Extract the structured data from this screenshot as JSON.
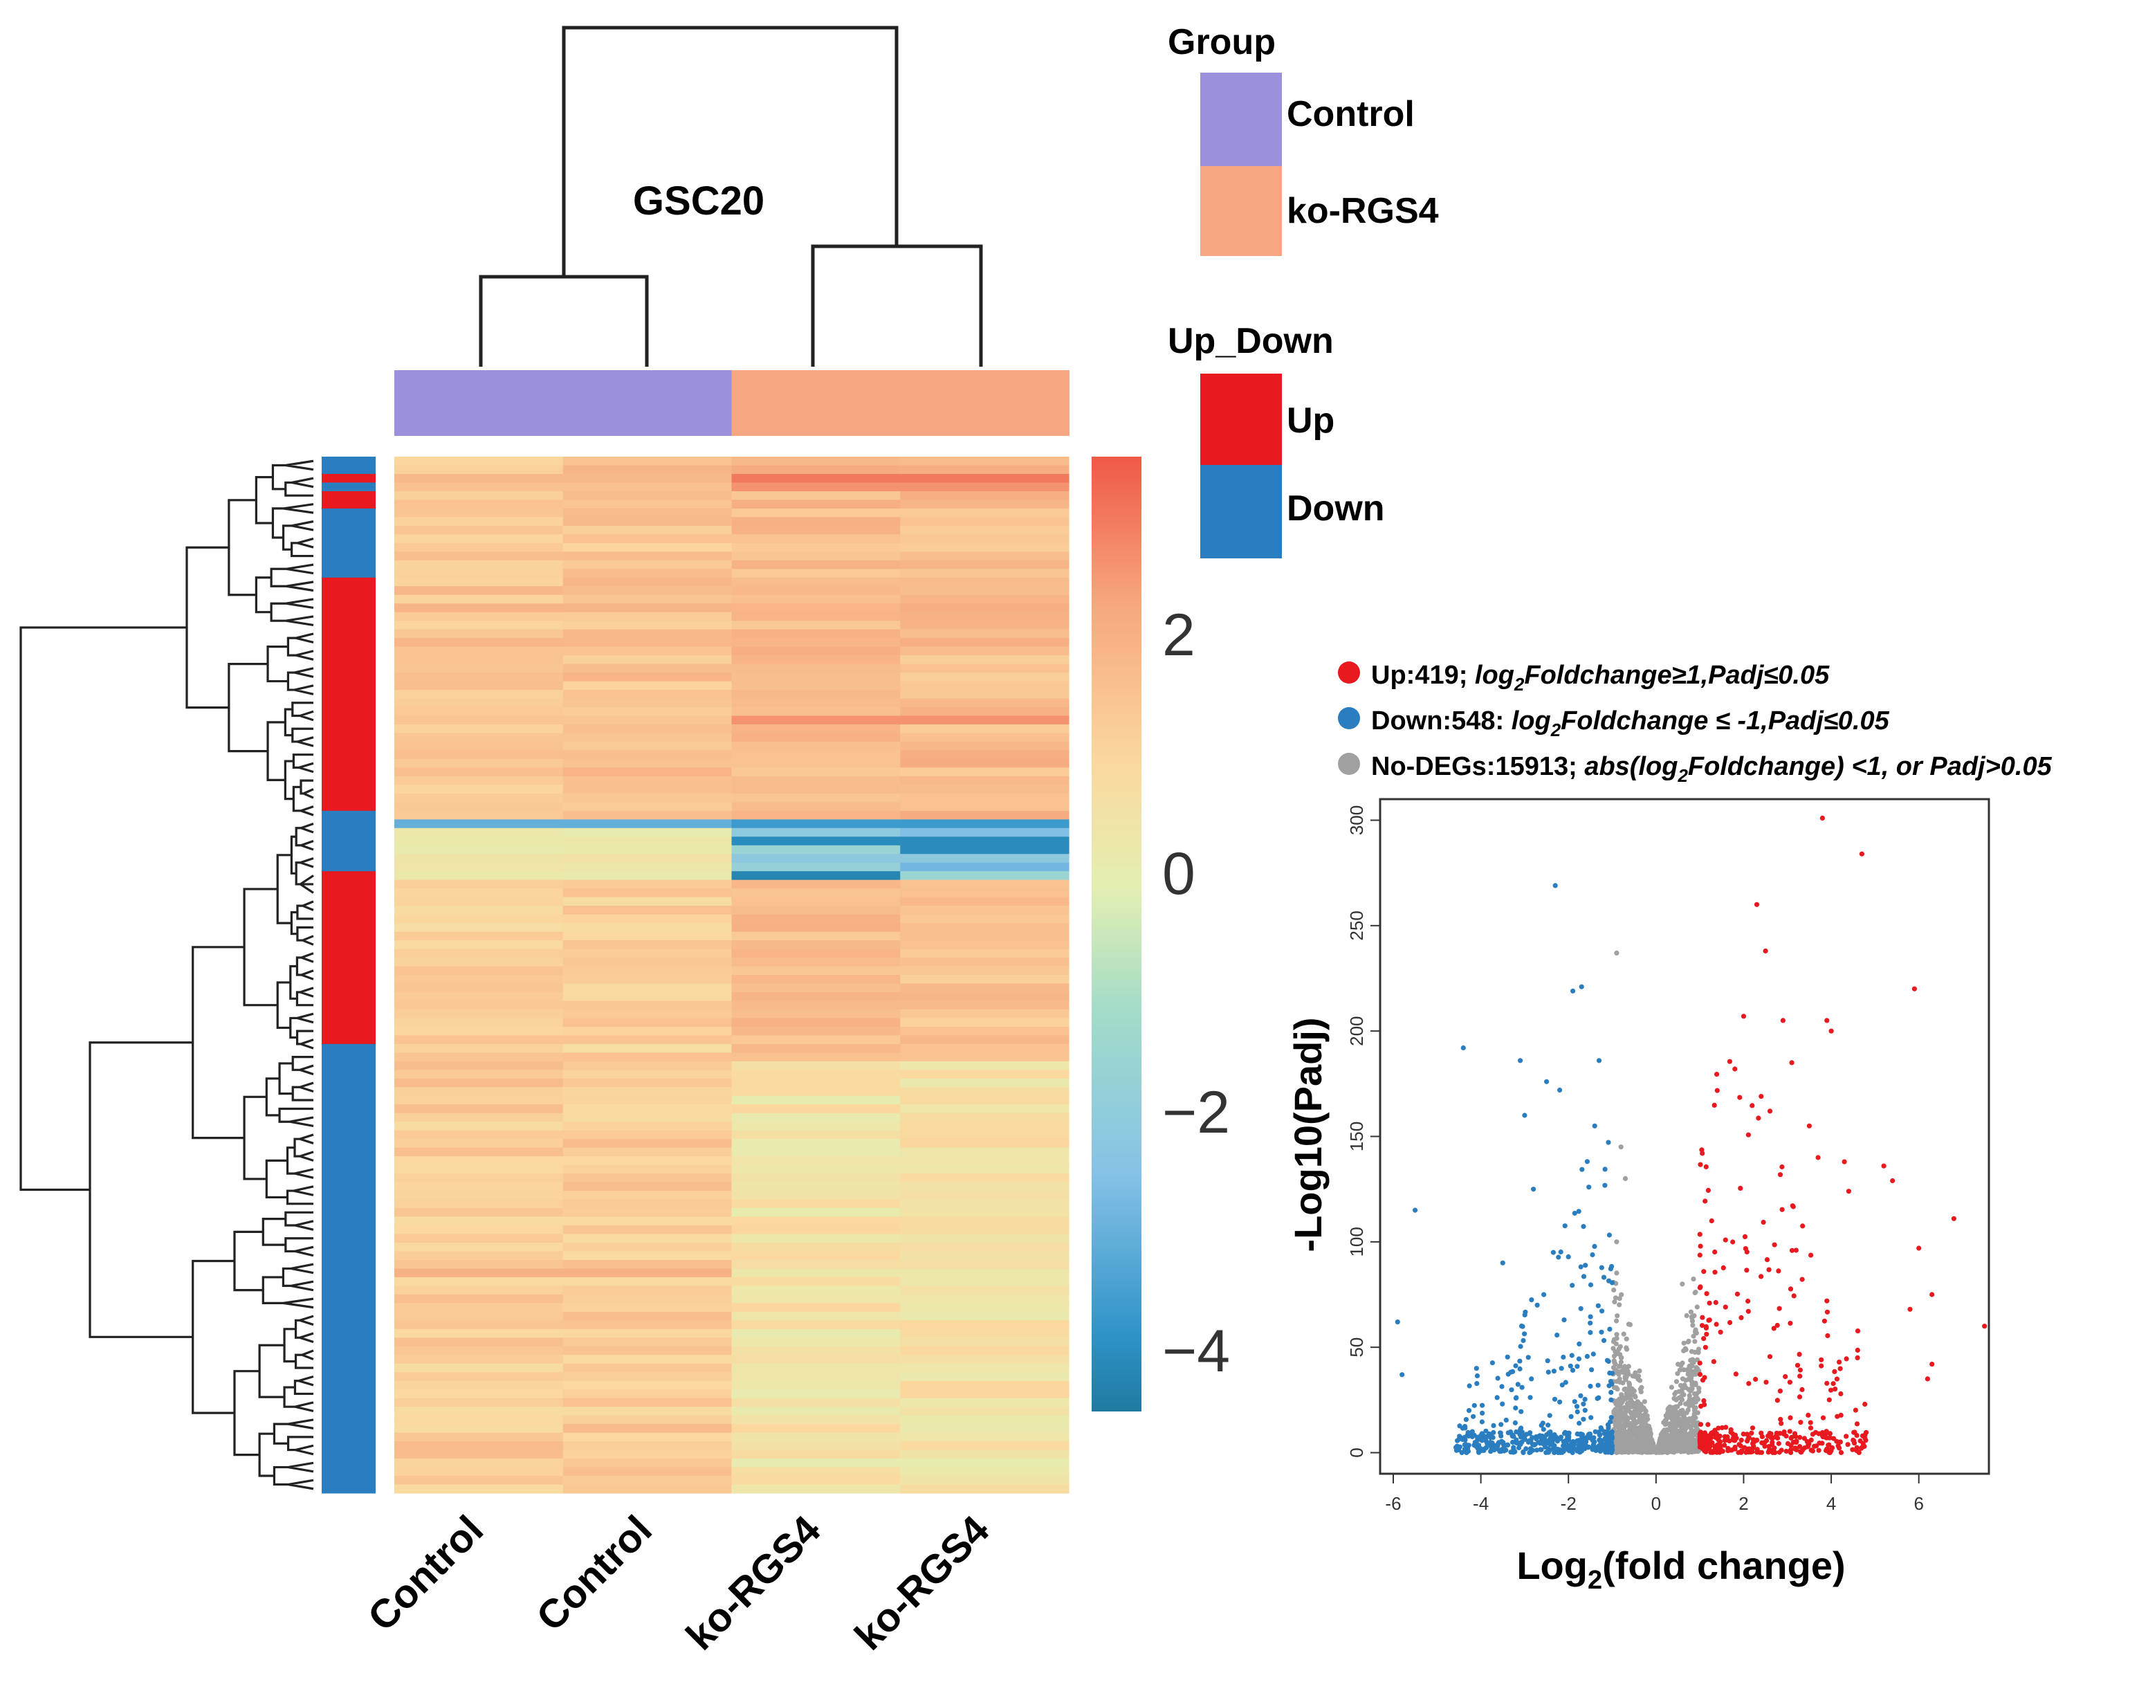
{
  "chart_data": [
    {
      "type": "heatmap",
      "title": "GSC20",
      "columns": [
        "Control",
        "Control",
        "ko-RGS4",
        "ko-RGS4"
      ],
      "column_groups": [
        "Control",
        "Control",
        "ko-RGS4",
        "ko-RGS4"
      ],
      "row_count": 120,
      "row_up_down": [
        {
          "label": "Down",
          "rows": 2
        },
        {
          "label": "Up",
          "rows": 1
        },
        {
          "label": "Down",
          "rows": 1
        },
        {
          "label": "Up",
          "rows": 2
        },
        {
          "label": "Down",
          "rows": 8
        },
        {
          "label": "Up",
          "rows": 27
        },
        {
          "label": "Down",
          "rows": 7
        },
        {
          "label": "Up",
          "rows": 20
        },
        {
          "label": "Down",
          "rows": 52
        }
      ],
      "value_profile": [
        {
          "rows": 42,
          "Control": 1.5,
          "ko-RGS4": 1.7
        },
        {
          "rows": 1,
          "Control": -3.0,
          "ko-RGS4": -3.5
        },
        {
          "rows": 6,
          "Control": 0.4,
          "ko-RGS4": -2.5
        },
        {
          "rows": 21,
          "Control": 1.2,
          "ko-RGS4": 1.6
        },
        {
          "rows": 50,
          "Control": 1.3,
          "ko-RGS4": 0.6
        }
      ],
      "colorbar": {
        "ticks": [
          2,
          0,
          -2,
          -4
        ],
        "range": [
          -4.5,
          3.5
        ],
        "colors": [
          "#1f7aa0",
          "#3aa0d6",
          "#8fc9ea",
          "#a8ddc6",
          "#e8f0b0",
          "#fbd59a",
          "#f5a37a",
          "#ee5a46"
        ]
      },
      "group_legend": {
        "title": "Group",
        "items": [
          {
            "label": "Control",
            "color": "#9b90dc"
          },
          {
            "label": "ko-RGS4",
            "color": "#f7a682"
          }
        ]
      },
      "updown_legend": {
        "title": "Up_Down",
        "items": [
          {
            "label": "Up",
            "color": "#e8191f"
          },
          {
            "label": "Down",
            "color": "#2a7ec0"
          }
        ]
      }
    },
    {
      "type": "scatter",
      "title": "",
      "xlabel": "Log2(fold change)",
      "ylabel": "-Log10(Padj)",
      "xlim": [
        -6.3,
        7.6
      ],
      "ylim": [
        -10,
        310
      ],
      "xticks": [
        -6,
        -4,
        -2,
        0,
        2,
        4,
        6
      ],
      "yticks": [
        0,
        50,
        100,
        150,
        200,
        250,
        300
      ],
      "legend": [
        {
          "name": "Up",
          "color": "#e8191f",
          "text": "Up:419; log2Foldchange≥1,Padj≤0.05"
        },
        {
          "name": "Down",
          "color": "#2a7ec0",
          "text": "Down:548: log2Foldchange ≤ -1,Padj≤0.05"
        },
        {
          "name": "No-DEGs",
          "color": "#a0a0a0",
          "text": "No-DEGs:15913; abs(log2Foldchange) <1, or Padj>0.05"
        }
      ],
      "series": [
        {
          "name": "Up",
          "color": "#e8191f",
          "count": 419,
          "highlighted_points": [
            [
              3.8,
              301
            ],
            [
              4.7,
              284
            ],
            [
              2.3,
              260
            ],
            [
              2.5,
              238
            ],
            [
              2.0,
              207
            ],
            [
              2.9,
              205
            ],
            [
              3.9,
              205
            ],
            [
              5.9,
              220
            ],
            [
              4.0,
              200
            ],
            [
              3.1,
              185
            ],
            [
              1.8,
              182
            ],
            [
              2.4,
              169
            ],
            [
              3.5,
              155
            ],
            [
              2.6,
              162
            ],
            [
              3.7,
              140
            ],
            [
              4.3,
              138
            ],
            [
              5.2,
              136
            ],
            [
              5.4,
              129
            ],
            [
              4.4,
              124
            ],
            [
              6.8,
              111
            ],
            [
              6.0,
              97
            ],
            [
              3.2,
              96
            ],
            [
              6.3,
              75
            ],
            [
              5.8,
              68
            ],
            [
              7.5,
              60
            ],
            [
              4.6,
              45
            ],
            [
              6.3,
              42
            ],
            [
              6.2,
              35
            ],
            [
              3.9,
              72
            ]
          ]
        },
        {
          "name": "Down",
          "color": "#2a7ec0",
          "count": 548,
          "highlighted_points": [
            [
              -2.3,
              269
            ],
            [
              -1.7,
              221
            ],
            [
              -1.9,
              219
            ],
            [
              -4.4,
              192
            ],
            [
              -1.3,
              186
            ],
            [
              -3.1,
              186
            ],
            [
              -2.5,
              176
            ],
            [
              -2.2,
              172
            ],
            [
              -5.5,
              115
            ],
            [
              -3.0,
              160
            ],
            [
              -1.4,
              155
            ],
            [
              -5.9,
              62
            ],
            [
              -5.8,
              37
            ],
            [
              -4.1,
              40
            ],
            [
              -2.8,
              125
            ],
            [
              -3.5,
              90
            ]
          ]
        },
        {
          "name": "No-DEGs",
          "color": "#a0a0a0",
          "count": 15913,
          "highlighted_points": [
            [
              -0.9,
              237
            ],
            [
              -0.8,
              145
            ],
            [
              -0.7,
              130
            ],
            [
              -0.9,
              100
            ],
            [
              0.6,
              80
            ],
            [
              0.7,
              65
            ]
          ]
        }
      ]
    }
  ]
}
